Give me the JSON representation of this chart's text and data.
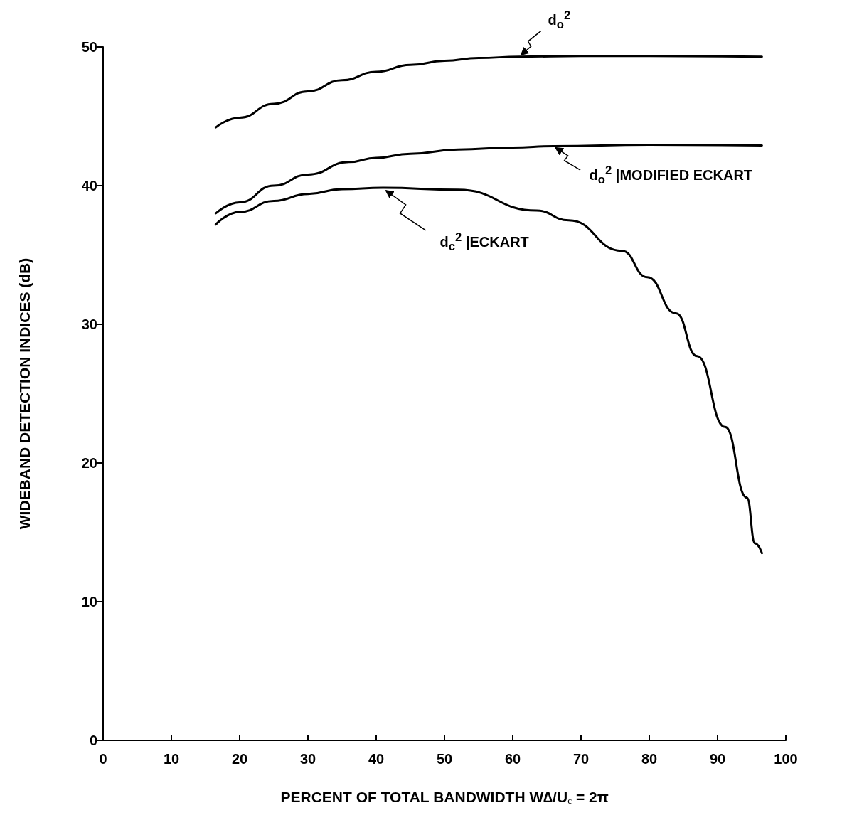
{
  "chart_data": {
    "type": "line",
    "xlabel": "PERCENT OF TOTAL BANDWIDTH W∆/U$_{c}$ = 2π",
    "ylabel": "WIDEBAND DETECTION INDICES (dB)",
    "xlim": [
      0,
      100
    ],
    "ylim": [
      0,
      50
    ],
    "xticks": [
      0,
      10,
      20,
      30,
      40,
      50,
      60,
      70,
      80,
      90,
      100
    ],
    "yticks": [
      0,
      10,
      20,
      30,
      40,
      50
    ],
    "grid": false,
    "marker": "none",
    "line_style": "solid",
    "series": [
      {
        "color": "#000000",
        "x": [
          16.5,
          20,
          25,
          30,
          35,
          40,
          45,
          50,
          55,
          61,
          70,
          80,
          96.5
        ],
        "values": [
          44.2,
          44.9,
          45.9,
          46.8,
          47.6,
          48.2,
          48.7,
          49.0,
          49.2,
          49.3,
          49.35,
          49.35,
          49.3
        ]
      },
      {
        "color": "#000000",
        "x": [
          16.5,
          20,
          25,
          30,
          36,
          40,
          45,
          52,
          60,
          66,
          80,
          96.5
        ],
        "values": [
          38.0,
          38.8,
          40.0,
          40.8,
          41.7,
          42.0,
          42.3,
          42.6,
          42.75,
          42.85,
          42.95,
          42.9
        ]
      },
      {
        "color": "#000000",
        "x": [
          16.5,
          20,
          25,
          30,
          35,
          41,
          52,
          63.5,
          68.2,
          76,
          79.7,
          83.9,
          87,
          91.1,
          94.3,
          95.5,
          96.5
        ],
        "values": [
          37.2,
          38.1,
          38.9,
          39.4,
          39.75,
          39.85,
          39.7,
          38.2,
          37.5,
          35.3,
          33.4,
          30.8,
          27.7,
          22.6,
          17.5,
          14.2,
          13.5
        ]
      }
    ],
    "annotations": [
      {
        "text": "d$_{o}$$^{2}$",
        "x": 61,
        "y": 49.3
      },
      {
        "text": "d$_{o}$$^{2}$ |MODIFIED ECKART",
        "x": 66,
        "y": 42.85
      },
      {
        "text": "d$_{c}$$^{2}$ |ECKART",
        "x": 41,
        "y": 39.85
      }
    ]
  }
}
